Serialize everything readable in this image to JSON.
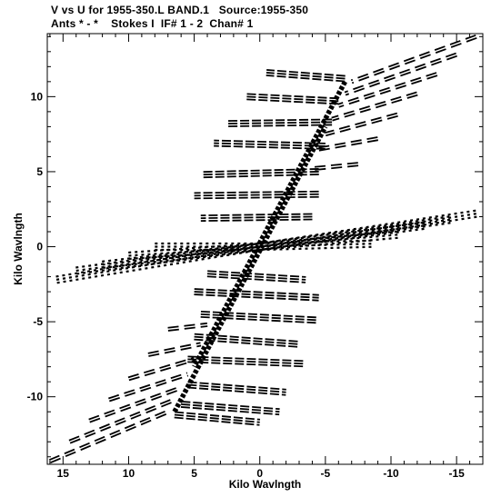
{
  "header": {
    "line1": "V vs U for 1955-350.L BAND.1   Source:1955-350",
    "line2": "Ants * - *    Stokes I  IF# 1 - 2  Chan# 1"
  },
  "chart_data": {
    "type": "scatter",
    "title": "V vs U for 1955-350.L BAND.1   Source:1955-350",
    "subtitle": "Ants * - *    Stokes I  IF# 1 - 2  Chan# 1",
    "xlabel": "Kilo Wavlngth",
    "ylabel": "Kilo Wavlngth",
    "xlim": [
      16.2,
      -17.0
    ],
    "ylim": [
      -14.5,
      14.2
    ],
    "x_reversed": true,
    "grid": false,
    "xticks": [
      15,
      10,
      5,
      0,
      -5,
      -10,
      -15
    ],
    "xtick_labels": [
      "15",
      "10",
      "5",
      "0",
      "-5",
      "-10",
      "-15"
    ],
    "yticks": [
      10,
      5,
      0,
      -5,
      -10
    ],
    "ytick_labels": [
      "10",
      "5",
      "0",
      "-5",
      "-10"
    ],
    "series": [
      {
        "style": "dashed-track",
        "tracks": [
          [
            [
              16.0,
              -14.3
            ],
            [
              7.0,
              -11.0
            ]
          ],
          [
            [
              14.5,
              -13.0
            ],
            [
              6.5,
              -10.2
            ]
          ],
          [
            [
              13.0,
              -11.6
            ],
            [
              6.0,
              -9.4
            ]
          ],
          [
            [
              11.5,
              -10.2
            ],
            [
              5.5,
              -8.5
            ]
          ],
          [
            [
              10.0,
              -8.8
            ],
            [
              5.0,
              -7.5
            ]
          ],
          [
            [
              8.5,
              -7.2
            ],
            [
              4.5,
              -6.5
            ]
          ],
          [
            [
              7.0,
              -5.5
            ],
            [
              4.0,
              -5.2
            ]
          ],
          [
            [
              -16.5,
              14.0
            ],
            [
              -7.0,
              11.0
            ]
          ],
          [
            [
              -15.0,
              12.8
            ],
            [
              -6.5,
              10.2
            ]
          ],
          [
            [
              -13.5,
              11.5
            ],
            [
              -6.0,
              9.4
            ]
          ],
          [
            [
              -12.0,
              10.2
            ],
            [
              -5.5,
              8.5
            ]
          ],
          [
            [
              -10.5,
              8.8
            ],
            [
              -5.0,
              7.5
            ]
          ],
          [
            [
              -9.0,
              7.2
            ],
            [
              -4.5,
              6.5
            ]
          ],
          [
            [
              -7.5,
              5.5
            ],
            [
              -4.0,
              5.2
            ]
          ]
        ]
      },
      {
        "style": "flat-track",
        "tracks": [
          [
            [
              6.5,
              -11.2
            ],
            [
              0.0,
              -11.7
            ]
          ],
          [
            [
              6.0,
              -10.5
            ],
            [
              -1.5,
              -11.0
            ]
          ],
          [
            [
              5.5,
              -9.2
            ],
            [
              -2.0,
              -9.7
            ]
          ],
          [
            [
              5.5,
              -7.5
            ],
            [
              -3.5,
              -7.8
            ]
          ],
          [
            [
              5.0,
              -6.0
            ],
            [
              -3.0,
              -6.5
            ]
          ],
          [
            [
              4.5,
              -4.5
            ],
            [
              -4.5,
              -4.9
            ]
          ],
          [
            [
              5.0,
              -3.0
            ],
            [
              -4.5,
              -3.4
            ]
          ],
          [
            [
              4.0,
              -1.8
            ],
            [
              -3.5,
              -2.2
            ]
          ],
          [
            [
              -6.5,
              11.2
            ],
            [
              -0.5,
              11.6
            ]
          ],
          [
            [
              -6.0,
              9.7
            ],
            [
              1.0,
              10.0
            ]
          ],
          [
            [
              -5.5,
              8.3
            ],
            [
              2.5,
              8.2
            ]
          ],
          [
            [
              -5.0,
              6.7
            ],
            [
              3.5,
              6.9
            ]
          ],
          [
            [
              -4.5,
              5.0
            ],
            [
              4.5,
              4.8
            ]
          ],
          [
            [
              -4.5,
              3.5
            ],
            [
              5.0,
              3.4
            ]
          ],
          [
            [
              -4.0,
              2.0
            ],
            [
              4.5,
              1.9
            ]
          ]
        ]
      },
      {
        "style": "radial-bundle",
        "tracks": [
          [
            [
              15.5,
              -2.2
            ],
            [
              0.0,
              0.0
            ]
          ],
          [
            [
              14.0,
              -1.6
            ],
            [
              0.0,
              0.0
            ]
          ],
          [
            [
              12.0,
              -1.2
            ],
            [
              0.0,
              0.0
            ]
          ],
          [
            [
              10.0,
              -0.6
            ],
            [
              0.0,
              0.0
            ]
          ],
          [
            [
              8.0,
              0.0
            ],
            [
              0.0,
              0.0
            ]
          ],
          [
            [
              -16.5,
              2.2
            ],
            [
              0.0,
              0.0
            ]
          ],
          [
            [
              -14.5,
              1.8
            ],
            [
              0.0,
              0.0
            ]
          ],
          [
            [
              -12.5,
              1.4
            ],
            [
              0.0,
              0.0
            ]
          ],
          [
            [
              -10.5,
              0.8
            ],
            [
              0.0,
              0.0
            ]
          ],
          [
            [
              -8.5,
              0.2
            ],
            [
              0.0,
              0.0
            ]
          ]
        ]
      },
      {
        "style": "central-spine",
        "tracks": [
          [
            [
              6.5,
              -11.0
            ],
            [
              -5.0,
              8.0
            ]
          ],
          [
            [
              -6.5,
              11.0
            ],
            [
              5.0,
              -8.0
            ]
          ]
        ]
      }
    ]
  }
}
